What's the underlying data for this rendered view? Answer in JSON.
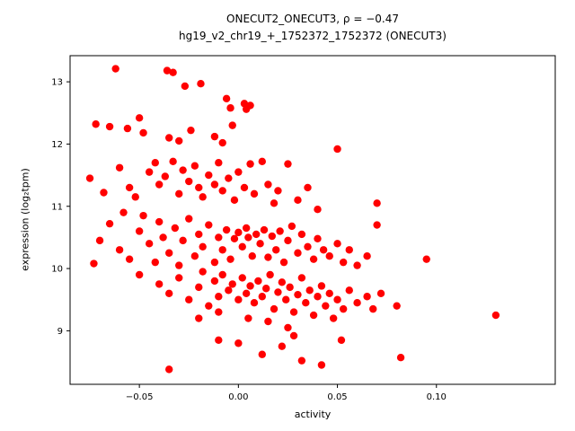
{
  "chart": {
    "title_line1": "ONECUT2_ONECUT3, ρ = −0.47",
    "title_line2": "hg19_v2_chr19_+_1752372_1752372 (ONECUT3)",
    "xlabel": "activity",
    "ylabel": "expression (log₂tpm)"
  },
  "chart_data": {
    "type": "scatter",
    "title": "ONECUT2_ONECUT3, ρ = −0.47",
    "subtitle": "hg19_v2_chr19_+_1752372_1752372 (ONECUT3)",
    "xlabel": "activity",
    "ylabel": "expression (log2 tpm)",
    "marker_color": "#ff0000",
    "marker_radius": 4.2,
    "grid": false,
    "xlim": [
      -0.085,
      0.16
    ],
    "ylim": [
      8.14,
      13.42
    ],
    "xticks": [
      -0.05,
      0.0,
      0.05,
      0.1
    ],
    "xtick_labels": [
      "−0.05",
      "0.00",
      "0.05",
      "0.10"
    ],
    "yticks": [
      9,
      10,
      11,
      12,
      13
    ],
    "ytick_labels": [
      "9",
      "10",
      "11",
      "12",
      "13"
    ],
    "points": [
      [
        -0.062,
        13.21
      ],
      [
        -0.036,
        13.18
      ],
      [
        -0.033,
        13.15
      ],
      [
        -0.027,
        12.93
      ],
      [
        -0.019,
        12.97
      ],
      [
        -0.006,
        12.73
      ],
      [
        0.003,
        12.65
      ],
      [
        0.004,
        12.56
      ],
      [
        -0.004,
        12.58
      ],
      [
        0.006,
        12.62
      ],
      [
        -0.072,
        12.32
      ],
      [
        -0.065,
        12.28
      ],
      [
        -0.056,
        12.25
      ],
      [
        -0.05,
        12.42
      ],
      [
        -0.048,
        12.18
      ],
      [
        -0.035,
        12.1
      ],
      [
        -0.03,
        12.05
      ],
      [
        -0.024,
        12.22
      ],
      [
        -0.012,
        12.12
      ],
      [
        -0.008,
        12.02
      ],
      [
        -0.003,
        12.3
      ],
      [
        0.05,
        11.92
      ],
      [
        -0.075,
        11.45
      ],
      [
        -0.068,
        11.22
      ],
      [
        -0.06,
        11.62
      ],
      [
        -0.055,
        11.3
      ],
      [
        -0.052,
        11.15
      ],
      [
        -0.045,
        11.55
      ],
      [
        -0.042,
        11.7
      ],
      [
        -0.04,
        11.35
      ],
      [
        -0.037,
        11.48
      ],
      [
        -0.033,
        11.72
      ],
      [
        -0.03,
        11.2
      ],
      [
        -0.028,
        11.58
      ],
      [
        -0.025,
        11.4
      ],
      [
        -0.022,
        11.65
      ],
      [
        -0.02,
        11.3
      ],
      [
        -0.018,
        11.15
      ],
      [
        -0.015,
        11.5
      ],
      [
        -0.012,
        11.35
      ],
      [
        -0.01,
        11.7
      ],
      [
        -0.008,
        11.25
      ],
      [
        -0.005,
        11.45
      ],
      [
        -0.002,
        11.1
      ],
      [
        0.0,
        11.55
      ],
      [
        0.003,
        11.3
      ],
      [
        0.006,
        11.68
      ],
      [
        0.008,
        11.2
      ],
      [
        0.012,
        11.72
      ],
      [
        0.015,
        11.35
      ],
      [
        0.018,
        11.05
      ],
      [
        0.02,
        11.25
      ],
      [
        0.025,
        11.68
      ],
      [
        0.03,
        11.1
      ],
      [
        0.035,
        11.3
      ],
      [
        0.04,
        10.95
      ],
      [
        0.07,
        11.05
      ],
      [
        -0.073,
        10.08
      ],
      [
        -0.07,
        10.45
      ],
      [
        -0.065,
        10.72
      ],
      [
        -0.06,
        10.3
      ],
      [
        -0.058,
        10.9
      ],
      [
        -0.055,
        10.15
      ],
      [
        -0.05,
        10.6
      ],
      [
        -0.048,
        10.85
      ],
      [
        -0.045,
        10.4
      ],
      [
        -0.042,
        10.1
      ],
      [
        -0.04,
        10.75
      ],
      [
        -0.038,
        10.5
      ],
      [
        -0.035,
        10.25
      ],
      [
        -0.032,
        10.65
      ],
      [
        -0.03,
        10.05
      ],
      [
        -0.028,
        10.45
      ],
      [
        -0.025,
        10.8
      ],
      [
        -0.022,
        10.2
      ],
      [
        -0.02,
        10.55
      ],
      [
        -0.018,
        10.35
      ],
      [
        -0.015,
        10.7
      ],
      [
        -0.012,
        10.1
      ],
      [
        -0.01,
        10.5
      ],
      [
        -0.008,
        10.3
      ],
      [
        -0.006,
        10.62
      ],
      [
        -0.004,
        10.15
      ],
      [
        -0.002,
        10.48
      ],
      [
        0.0,
        10.58
      ],
      [
        0.002,
        10.35
      ],
      [
        0.004,
        10.65
      ],
      [
        0.005,
        10.5
      ],
      [
        0.007,
        10.2
      ],
      [
        0.009,
        10.55
      ],
      [
        0.011,
        10.4
      ],
      [
        0.013,
        10.62
      ],
      [
        0.015,
        10.18
      ],
      [
        0.017,
        10.52
      ],
      [
        0.019,
        10.3
      ],
      [
        0.021,
        10.6
      ],
      [
        0.023,
        10.1
      ],
      [
        0.025,
        10.45
      ],
      [
        0.027,
        10.68
      ],
      [
        0.03,
        10.25
      ],
      [
        0.032,
        10.55
      ],
      [
        0.035,
        10.35
      ],
      [
        0.038,
        10.15
      ],
      [
        0.04,
        10.48
      ],
      [
        0.043,
        10.3
      ],
      [
        0.046,
        10.2
      ],
      [
        0.05,
        10.4
      ],
      [
        0.053,
        10.1
      ],
      [
        0.056,
        10.3
      ],
      [
        0.06,
        10.05
      ],
      [
        0.065,
        10.2
      ],
      [
        0.07,
        10.7
      ],
      [
        0.095,
        10.15
      ],
      [
        -0.05,
        9.9
      ],
      [
        -0.04,
        9.75
      ],
      [
        -0.035,
        9.6
      ],
      [
        -0.03,
        9.85
      ],
      [
        -0.025,
        9.5
      ],
      [
        -0.02,
        9.7
      ],
      [
        -0.018,
        9.95
      ],
      [
        -0.015,
        9.4
      ],
      [
        -0.012,
        9.8
      ],
      [
        -0.01,
        9.55
      ],
      [
        -0.008,
        9.9
      ],
      [
        -0.005,
        9.65
      ],
      [
        -0.003,
        9.75
      ],
      [
        0.0,
        9.5
      ],
      [
        0.002,
        9.85
      ],
      [
        0.004,
        9.6
      ],
      [
        0.006,
        9.72
      ],
      [
        0.008,
        9.45
      ],
      [
        0.01,
        9.8
      ],
      [
        0.012,
        9.55
      ],
      [
        0.014,
        9.68
      ],
      [
        0.016,
        9.9
      ],
      [
        0.018,
        9.35
      ],
      [
        0.02,
        9.62
      ],
      [
        0.022,
        9.78
      ],
      [
        0.024,
        9.5
      ],
      [
        0.026,
        9.7
      ],
      [
        0.028,
        9.3
      ],
      [
        0.03,
        9.58
      ],
      [
        0.032,
        9.85
      ],
      [
        0.034,
        9.45
      ],
      [
        0.036,
        9.65
      ],
      [
        0.038,
        9.25
      ],
      [
        0.04,
        9.55
      ],
      [
        0.042,
        9.72
      ],
      [
        0.044,
        9.4
      ],
      [
        0.046,
        9.6
      ],
      [
        0.048,
        9.2
      ],
      [
        0.05,
        9.5
      ],
      [
        0.053,
        9.35
      ],
      [
        0.056,
        9.65
      ],
      [
        0.06,
        9.45
      ],
      [
        0.065,
        9.55
      ],
      [
        0.068,
        9.35
      ],
      [
        0.072,
        9.6
      ],
      [
        0.08,
        9.4
      ],
      [
        0.005,
        9.2
      ],
      [
        0.015,
        9.15
      ],
      [
        0.025,
        9.05
      ],
      [
        -0.01,
        9.3
      ],
      [
        -0.02,
        9.2
      ],
      [
        0.13,
        9.25
      ],
      [
        0.082,
        8.57
      ],
      [
        -0.035,
        8.38
      ],
      [
        -0.01,
        8.85
      ],
      [
        0.0,
        8.8
      ],
      [
        0.012,
        8.62
      ],
      [
        0.022,
        8.75
      ],
      [
        0.032,
        8.52
      ],
      [
        0.042,
        8.45
      ],
      [
        0.052,
        8.85
      ],
      [
        0.028,
        8.92
      ]
    ]
  }
}
